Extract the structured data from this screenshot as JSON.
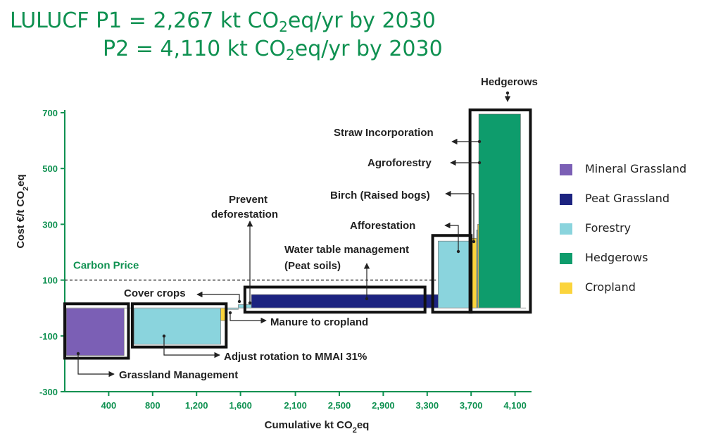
{
  "title": {
    "line1": {
      "prefix": "LULUCF P1 = 2,267 kt CO",
      "sub": "2",
      "suffix": "eq/yr by 2030"
    },
    "line2": {
      "prefix": "P2 = 4,110 kt CO",
      "sub": "2",
      "suffix": "eq/yr by 2030"
    }
  },
  "colors": {
    "Mineral Grassland": "#7b5fb5",
    "Peat Grassland": "#1c2380",
    "Forestry": "#8ad4dd",
    "Hedgerows": "#0e9c6c",
    "Cropland": "#fbd43c",
    "axis_green": "#0f9151"
  },
  "chart_data": {
    "type": "bar",
    "subtype": "marginal-abatement-cost-curve",
    "xlabel": {
      "prefix": "Cumulative kt CO",
      "sub": "2",
      "suffix": "eq"
    },
    "ylabel": {
      "prefix": "Cost €/t CO",
      "sub": "2",
      "suffix": "eq"
    },
    "xlim": [
      0,
      4250
    ],
    "ylim": [
      -300,
      700
    ],
    "x_ticks": [
      400,
      800,
      1200,
      1600,
      2100,
      2500,
      2900,
      3300,
      3700,
      4100
    ],
    "x_tick_labels": [
      "400",
      "800",
      "1,200",
      "1,600",
      "2,100",
      "2,500",
      "2,900",
      "3,300",
      "3,700",
      "4,100"
    ],
    "y_ticks": [
      700,
      500,
      300,
      100,
      -100,
      -300
    ],
    "y_tick_labels": [
      "700",
      "500",
      "300",
      "100",
      "-100",
      "-300"
    ],
    "carbon_price": {
      "value": 100,
      "label": "Carbon Price"
    },
    "bars": [
      {
        "measure": "Grassland Management",
        "category": "Mineral Grassland",
        "x0": 15,
        "x1": 540,
        "y": -170
      },
      {
        "measure": "Adjust rotation to MMAI 31%",
        "category": "Forestry",
        "x0": 630,
        "x1": 1420,
        "y": -130
      },
      {
        "measure": "Manure to cropland",
        "category": "Cropland",
        "x0": 1420,
        "x1": 1460,
        "y": -45
      },
      {
        "measure": "Cover crops",
        "category": "Forestry",
        "x0": 1460,
        "x1": 1580,
        "y": -5
      },
      {
        "measure": "Prevent deforestation",
        "category": "Forestry",
        "x0": 1580,
        "x1": 1700,
        "y": 12
      },
      {
        "measure": "Water table management (Peat soils)",
        "category": "Peat Grassland",
        "x0": 1700,
        "x1": 3400,
        "y": 48
      },
      {
        "measure": "Afforestation",
        "category": "Forestry",
        "x0": 3400,
        "x1": 3680,
        "y": 240
      },
      {
        "measure": "Birch (Raised bogs)",
        "category": "Cropland",
        "x0": 3680,
        "x1": 3750,
        "y": 250
      },
      {
        "measure": "Agroforestry",
        "category": "Forestry",
        "x0": 3750,
        "x1": 3760,
        "y": 280
      },
      {
        "measure": "Straw Incorporation",
        "category": "Cropland",
        "x0": 3760,
        "x1": 3770,
        "y": 300
      },
      {
        "measure": "Hedgerows",
        "category": "Hedgerows",
        "x0": 3770,
        "x1": 4150,
        "y": 695
      }
    ],
    "highlight_boxes": [
      {
        "x0": 0,
        "x1": 580,
        "y0": -180,
        "y1": 15
      },
      {
        "x0": 615,
        "x1": 1470,
        "y0": -140,
        "y1": 15
      },
      {
        "x0": 1640,
        "x1": 3280,
        "y0": -15,
        "y1": 75
      },
      {
        "x0": 3350,
        "x1": 3700,
        "y0": -15,
        "y1": 260
      },
      {
        "x0": 3690,
        "x1": 4240,
        "y0": -15,
        "y1": 710
      }
    ],
    "annotations": [
      {
        "text": "Hedgerows",
        "target": [
          3920,
          700
        ]
      },
      {
        "text": "Straw Incorporation",
        "target": [
          3660,
          395
        ]
      },
      {
        "text": "Agroforestry",
        "target": [
          3660,
          315
        ]
      },
      {
        "text": "Birch (Raised bogs)",
        "target": [
          3660,
          230
        ]
      },
      {
        "text": "Afforestation",
        "target": [
          3660,
          205
        ]
      },
      {
        "text": "Prevent",
        "target": [
          1550,
          10
        ]
      },
      {
        "text": "deforestation",
        "target": null
      },
      {
        "text": "Water table management",
        "target": [
          2700,
          30
        ]
      },
      {
        "text": "(Peat soils)",
        "target": null
      },
      {
        "text": "Cover crops",
        "target": [
          1500,
          10
        ]
      },
      {
        "text": "Manure to cropland",
        "target": [
          1430,
          -45
        ]
      },
      {
        "text": "Adjust rotation to MMAI 31%",
        "target": [
          850,
          -100
        ]
      },
      {
        "text": "Grassland Management",
        "target": [
          150,
          -120
        ]
      }
    ],
    "legend": {
      "position": "right",
      "entries": [
        "Mineral Grassland",
        "Peat Grassland",
        "Forestry",
        "Hedgerows",
        "Cropland"
      ]
    }
  }
}
